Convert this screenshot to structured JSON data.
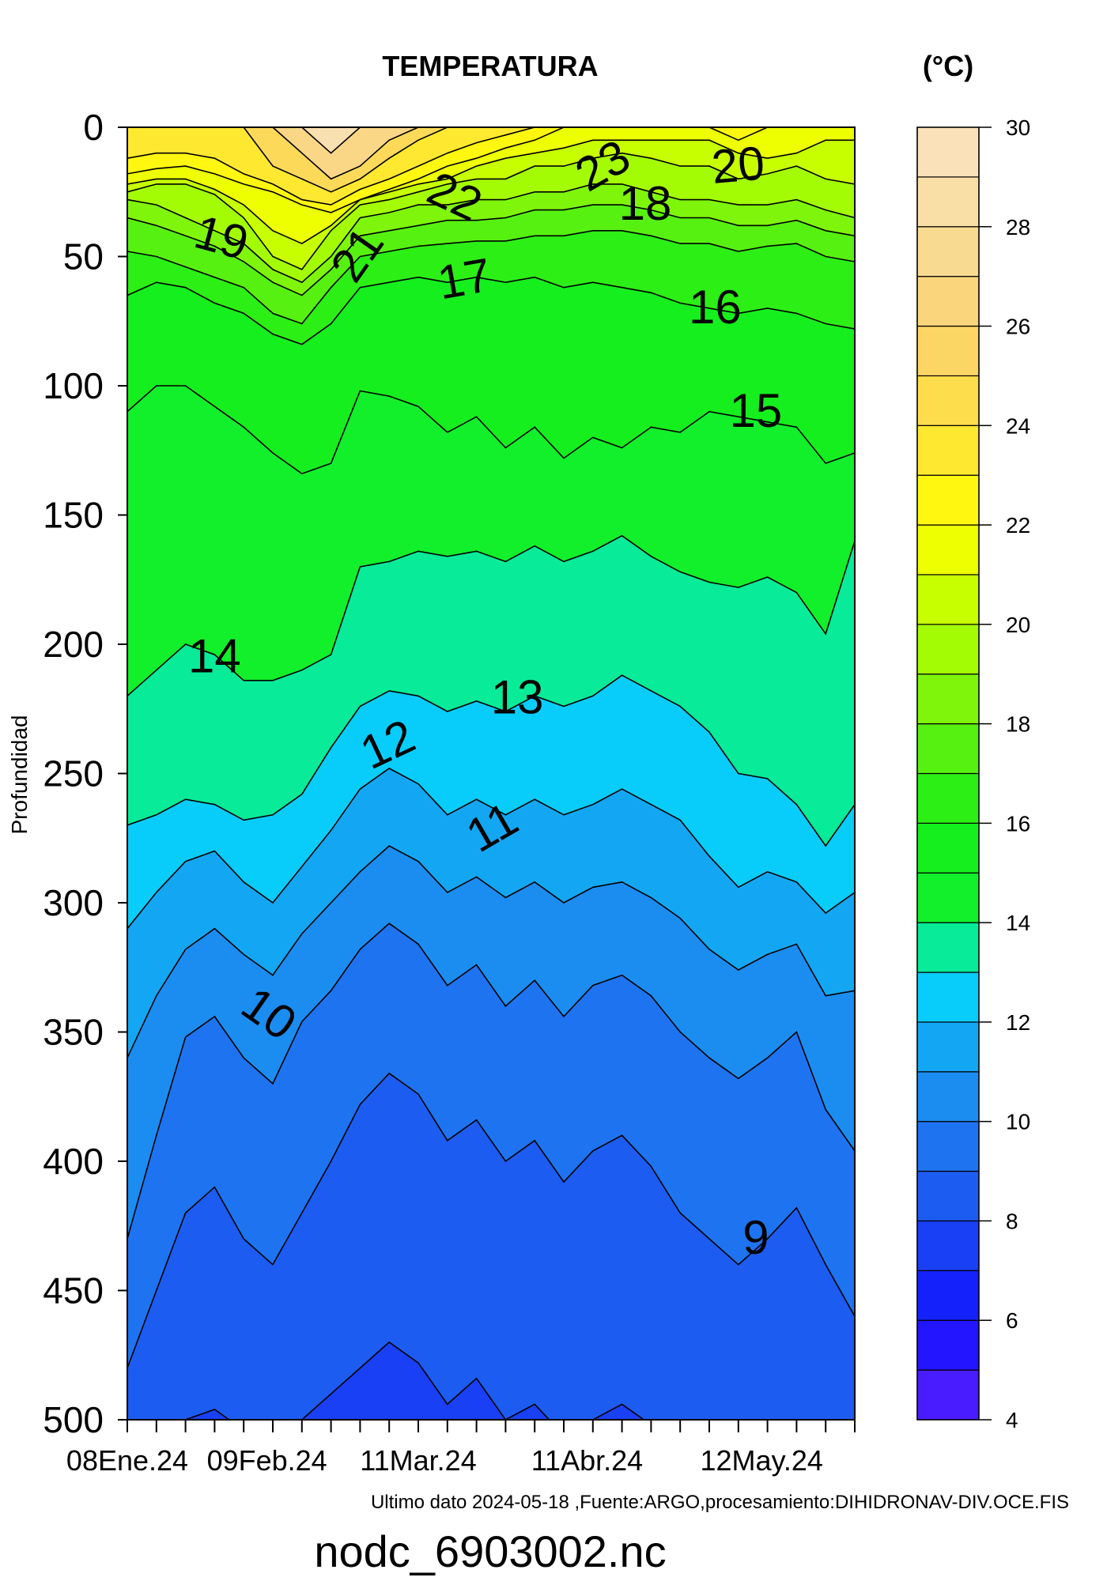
{
  "chart_data": {
    "type": "heatmap",
    "subtype": "filled-contour",
    "title": "TEMPERATURA",
    "unit_label": "(°C)",
    "ylabel": "Profundidad",
    "ylim": [
      500,
      0
    ],
    "y_ticks": [
      0,
      50,
      100,
      150,
      200,
      250,
      300,
      350,
      400,
      450,
      500
    ],
    "x_range_days": [
      0,
      125
    ],
    "x_tick_labels": [
      "08Ene.24",
      "09Feb.24",
      "11Mar.24",
      "11Abr.24",
      "12May.24"
    ],
    "x_tick_days": [
      0,
      24,
      50,
      79,
      109
    ],
    "x_minor_tick_count": 26,
    "colorbar_ticks": [
      4,
      6,
      8,
      10,
      12,
      14,
      16,
      18,
      20,
      22,
      24,
      26,
      28,
      30
    ],
    "colorbar_step": 1,
    "color_stops": [
      {
        "t": 4,
        "color": "#5a1fff"
      },
      {
        "t": 6,
        "color": "#1111ff"
      },
      {
        "t": 8,
        "color": "#1c50f0"
      },
      {
        "t": 10,
        "color": "#1f80f0"
      },
      {
        "t": 12,
        "color": "#0fb4f4"
      },
      {
        "t": 13,
        "color": "#00e6ff"
      },
      {
        "t": 14,
        "color": "#0ff030"
      },
      {
        "t": 16,
        "color": "#17ee17"
      },
      {
        "t": 18,
        "color": "#6cf20f"
      },
      {
        "t": 20,
        "color": "#b6ff00"
      },
      {
        "t": 22,
        "color": "#ffff00"
      },
      {
        "t": 24,
        "color": "#ffe040"
      },
      {
        "t": 26,
        "color": "#fbd271"
      },
      {
        "t": 28,
        "color": "#f8dc9c"
      },
      {
        "t": 30,
        "color": "#fae3c4"
      }
    ],
    "isotherms": [
      {
        "t": 30,
        "depths": [
          0,
          0,
          0,
          0,
          0,
          0,
          0,
          0,
          0,
          0,
          0,
          0,
          0,
          0,
          0,
          0,
          0,
          0,
          0,
          0,
          0,
          0,
          0,
          0,
          0,
          0
        ]
      },
      {
        "t": 28,
        "depths": [
          0,
          0,
          0,
          0,
          0,
          0,
          0,
          10,
          0,
          0,
          0,
          0,
          0,
          0,
          0,
          0,
          0,
          0,
          0,
          0,
          0,
          0,
          0,
          0,
          0,
          0
        ]
      },
      {
        "t": 26,
        "depths": [
          0,
          0,
          0,
          0,
          0,
          0,
          10,
          20,
          15,
          5,
          0,
          0,
          0,
          0,
          0,
          0,
          0,
          0,
          0,
          0,
          0,
          0,
          0,
          0,
          0,
          0
        ]
      },
      {
        "t": 24,
        "depths": [
          0,
          0,
          0,
          0,
          0,
          15,
          20,
          25,
          20,
          12,
          5,
          0,
          0,
          0,
          0,
          0,
          0,
          0,
          0,
          0,
          0,
          0,
          0,
          0,
          0,
          0
        ]
      },
      {
        "t": 23,
        "depths": [
          12,
          10,
          10,
          12,
          18,
          22,
          28,
          30,
          24,
          20,
          15,
          10,
          6,
          3,
          0,
          0,
          0,
          0,
          0,
          0,
          0,
          0,
          0,
          0,
          0,
          0
        ]
      },
      {
        "t": 22,
        "depths": [
          18,
          16,
          15,
          18,
          22,
          25,
          30,
          33,
          28,
          24,
          20,
          15,
          12,
          8,
          5,
          0,
          0,
          0,
          0,
          0,
          0,
          5,
          0,
          0,
          0,
          0
        ]
      },
      {
        "t": 21,
        "depths": [
          22,
          20,
          20,
          24,
          30,
          40,
          45,
          38,
          28,
          25,
          22,
          20,
          15,
          12,
          10,
          8,
          5,
          5,
          5,
          5,
          5,
          10,
          12,
          10,
          5,
          5
        ]
      },
      {
        "t": 20,
        "depths": [
          25,
          22,
          22,
          26,
          35,
          50,
          55,
          40,
          30,
          28,
          25,
          22,
          20,
          20,
          15,
          15,
          12,
          10,
          12,
          15,
          15,
          20,
          18,
          15,
          20,
          22
        ]
      },
      {
        "t": 19,
        "depths": [
          28,
          30,
          35,
          40,
          45,
          55,
          60,
          50,
          35,
          33,
          30,
          30,
          28,
          28,
          25,
          25,
          22,
          22,
          25,
          28,
          28,
          30,
          30,
          28,
          32,
          35
        ]
      },
      {
        "t": 18,
        "depths": [
          35,
          38,
          42,
          46,
          52,
          60,
          65,
          55,
          42,
          40,
          38,
          36,
          36,
          35,
          32,
          32,
          30,
          30,
          32,
          35,
          35,
          38,
          38,
          36,
          40,
          42
        ]
      },
      {
        "t": 17,
        "depths": [
          48,
          50,
          54,
          58,
          62,
          72,
          76,
          62,
          50,
          48,
          46,
          45,
          44,
          44,
          42,
          42,
          40,
          40,
          42,
          45,
          45,
          48,
          46,
          45,
          50,
          52
        ]
      },
      {
        "t": 16,
        "depths": [
          65,
          60,
          62,
          68,
          72,
          80,
          84,
          76,
          62,
          60,
          58,
          60,
          58,
          60,
          58,
          62,
          60,
          62,
          64,
          68,
          70,
          72,
          70,
          72,
          76,
          78
        ]
      },
      {
        "t": 15,
        "depths": [
          110,
          100,
          100,
          108,
          116,
          126,
          134,
          130,
          102,
          104,
          108,
          118,
          112,
          124,
          116,
          128,
          120,
          124,
          116,
          118,
          110,
          112,
          114,
          116,
          130,
          126
        ]
      },
      {
        "t": 14,
        "depths": [
          220,
          210,
          200,
          204,
          214,
          214,
          210,
          204,
          170,
          168,
          164,
          166,
          164,
          168,
          162,
          168,
          164,
          158,
          166,
          172,
          176,
          178,
          174,
          180,
          196,
          160
        ]
      },
      {
        "t": 13,
        "depths": [
          270,
          266,
          260,
          262,
          268,
          266,
          258,
          240,
          224,
          218,
          220,
          226,
          222,
          226,
          220,
          224,
          220,
          212,
          218,
          224,
          234,
          250,
          252,
          262,
          278,
          262
        ]
      },
      {
        "t": 12,
        "depths": [
          310,
          296,
          284,
          280,
          292,
          300,
          286,
          272,
          256,
          248,
          254,
          266,
          260,
          266,
          260,
          266,
          262,
          256,
          262,
          268,
          282,
          294,
          288,
          292,
          304,
          296
        ]
      },
      {
        "t": 11,
        "depths": [
          360,
          336,
          318,
          310,
          320,
          328,
          312,
          300,
          288,
          278,
          284,
          296,
          290,
          298,
          292,
          300,
          294,
          292,
          298,
          306,
          318,
          326,
          320,
          316,
          336,
          334
        ]
      },
      {
        "t": 10,
        "depths": [
          430,
          390,
          352,
          344,
          360,
          370,
          346,
          334,
          318,
          308,
          316,
          332,
          324,
          340,
          330,
          344,
          332,
          328,
          336,
          350,
          360,
          368,
          360,
          350,
          380,
          396
        ]
      },
      {
        "t": 9,
        "depths": [
          480,
          450,
          420,
          410,
          430,
          440,
          420,
          400,
          378,
          366,
          374,
          392,
          384,
          400,
          392,
          408,
          396,
          390,
          402,
          420,
          430,
          440,
          430,
          418,
          440,
          460
        ]
      },
      {
        "t": 8,
        "depths": [
          520,
          510,
          500,
          496,
          504,
          510,
          500,
          490,
          480,
          470,
          478,
          494,
          484,
          500,
          494,
          506,
          500,
          494,
          502,
          510,
          512,
          516,
          510,
          504,
          514,
          520
        ]
      }
    ],
    "contour_labels": [
      {
        "text": "19",
        "day": 16,
        "depth": 44,
        "rotate": 15
      },
      {
        "text": "21",
        "day": 40,
        "depth": 50,
        "rotate": -55
      },
      {
        "text": "22",
        "day": 56,
        "depth": 28,
        "rotate": 25
      },
      {
        "text": "23",
        "day": 82,
        "depth": 16,
        "rotate": -30
      },
      {
        "text": "20",
        "day": 105,
        "depth": 16,
        "rotate": -5
      },
      {
        "text": "18",
        "day": 89,
        "depth": 31,
        "rotate": 0
      },
      {
        "text": "17",
        "day": 58,
        "depth": 60,
        "rotate": -10
      },
      {
        "text": "16",
        "day": 101,
        "depth": 71,
        "rotate": 0
      },
      {
        "text": "15",
        "day": 108,
        "depth": 111,
        "rotate": 0
      },
      {
        "text": "14",
        "day": 15,
        "depth": 206,
        "rotate": 0
      },
      {
        "text": "13",
        "day": 67,
        "depth": 222,
        "rotate": 0
      },
      {
        "text": "12",
        "day": 45,
        "depth": 240,
        "rotate": -25
      },
      {
        "text": "11",
        "day": 63,
        "depth": 272,
        "rotate": -30
      },
      {
        "text": "10",
        "day": 24,
        "depth": 344,
        "rotate": 35
      },
      {
        "text": "9",
        "day": 108,
        "depth": 431,
        "rotate": 0
      }
    ],
    "footnote": "Ultimo dato 2024-05-18 ,Fuente:ARGO,procesamiento:DIHIDRONAV-DIV.OCE.FIS",
    "filename": "nodc_6903002.nc"
  }
}
